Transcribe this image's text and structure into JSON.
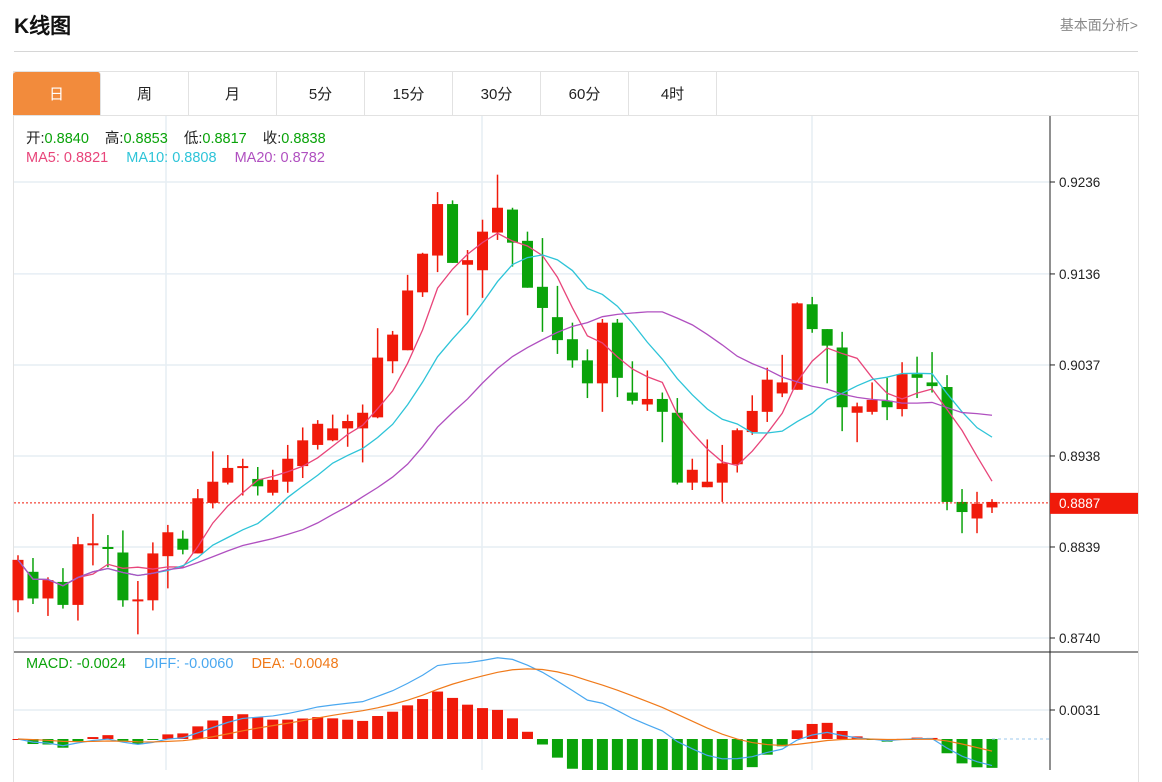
{
  "header": {
    "title": "K线图",
    "link": "基本面分析>"
  },
  "tabs": [
    {
      "label": "日",
      "active": true
    },
    {
      "label": "周"
    },
    {
      "label": "月"
    },
    {
      "label": "5分"
    },
    {
      "label": "15分"
    },
    {
      "label": "30分"
    },
    {
      "label": "60分"
    },
    {
      "label": "4时"
    }
  ],
  "ohlc_legend": {
    "open_label": "开:",
    "open": "0.8840",
    "high_label": "高:",
    "high": "0.8853",
    "low_label": "低:",
    "low": "0.8817",
    "close_label": "收:",
    "close": "0.8838"
  },
  "ma_legend": {
    "ma5": "MA5: 0.8821",
    "ma10": "MA10: 0.8808",
    "ma20": "MA20: 0.8782"
  },
  "macd_legend": {
    "macd": "MACD: -0.0024",
    "diff": "DIFF: -0.0060",
    "dea": "DEA: -0.0048"
  },
  "colors": {
    "up": "#f01a0a",
    "down": "#0aa30a",
    "ma5": "#e8457a",
    "ma10": "#2ec4d8",
    "ma20": "#b050c0",
    "diff": "#4aa8f0",
    "dea": "#f07a1a",
    "accent": "#f28b3c"
  },
  "chart_data": {
    "type": "candlestick",
    "price_ticks": [
      "0.9236",
      "0.9136",
      "0.9037",
      "0.8938",
      "0.8839",
      "0.8740"
    ],
    "price_range": [
      0.874,
      0.9236
    ],
    "current_price": "0.8887",
    "macd_ticks": [
      "0.0031"
    ],
    "ohlc": [
      [
        0.8781,
        0.883,
        0.8768,
        0.8825
      ],
      [
        0.8812,
        0.8827,
        0.8777,
        0.8783
      ],
      [
        0.8783,
        0.8806,
        0.8764,
        0.8803
      ],
      [
        0.8801,
        0.8816,
        0.8772,
        0.8776
      ],
      [
        0.8776,
        0.885,
        0.8759,
        0.8842
      ],
      [
        0.8841,
        0.8875,
        0.8819,
        0.8843
      ],
      [
        0.8839,
        0.8852,
        0.8817,
        0.8837
      ],
      [
        0.8833,
        0.8857,
        0.8774,
        0.8781
      ],
      [
        0.8781,
        0.8802,
        0.8744,
        0.8782
      ],
      [
        0.8781,
        0.8844,
        0.877,
        0.8832
      ],
      [
        0.8829,
        0.8863,
        0.8794,
        0.8855
      ],
      [
        0.8848,
        0.8857,
        0.8831,
        0.8836
      ],
      [
        0.8832,
        0.8902,
        0.8832,
        0.8892
      ],
      [
        0.8887,
        0.8943,
        0.8881,
        0.891
      ],
      [
        0.8909,
        0.8939,
        0.8907,
        0.8925
      ],
      [
        0.8925,
        0.8935,
        0.8895,
        0.8927
      ],
      [
        0.8913,
        0.8926,
        0.8895,
        0.8905
      ],
      [
        0.8898,
        0.8923,
        0.8895,
        0.8912
      ],
      [
        0.891,
        0.895,
        0.8898,
        0.8935
      ],
      [
        0.8927,
        0.8969,
        0.8914,
        0.8955
      ],
      [
        0.895,
        0.8977,
        0.8945,
        0.8973
      ],
      [
        0.8955,
        0.8983,
        0.8954,
        0.8968
      ],
      [
        0.8968,
        0.8983,
        0.8948,
        0.8976
      ],
      [
        0.8968,
        0.8994,
        0.8931,
        0.8985
      ],
      [
        0.898,
        0.9077,
        0.8979,
        0.9045
      ],
      [
        0.9041,
        0.9074,
        0.9028,
        0.907
      ],
      [
        0.9053,
        0.9135,
        0.9053,
        0.9118
      ],
      [
        0.9116,
        0.9159,
        0.9111,
        0.9158
      ],
      [
        0.9156,
        0.9225,
        0.9138,
        0.9212
      ],
      [
        0.9212,
        0.9216,
        0.9148,
        0.9148
      ],
      [
        0.9146,
        0.9162,
        0.9091,
        0.9151
      ],
      [
        0.914,
        0.9195,
        0.911,
        0.9182
      ],
      [
        0.9181,
        0.9244,
        0.9173,
        0.9208
      ],
      [
        0.9206,
        0.9208,
        0.9144,
        0.917
      ],
      [
        0.9172,
        0.9182,
        0.9121,
        0.9121
      ],
      [
        0.9122,
        0.9175,
        0.9073,
        0.9099
      ],
      [
        0.9089,
        0.9123,
        0.9049,
        0.9064
      ],
      [
        0.9065,
        0.9083,
        0.9034,
        0.9042
      ],
      [
        0.9042,
        0.9054,
        0.9001,
        0.9017
      ],
      [
        0.9017,
        0.9087,
        0.8986,
        0.9083
      ],
      [
        0.9083,
        0.9087,
        0.9002,
        0.9023
      ],
      [
        0.9007,
        0.9041,
        0.8994,
        0.8998
      ],
      [
        0.8994,
        0.9031,
        0.8987,
        0.9
      ],
      [
        0.9,
        0.9007,
        0.8953,
        0.8986
      ],
      [
        0.8985,
        0.9001,
        0.8907,
        0.8909
      ],
      [
        0.8909,
        0.8935,
        0.8901,
        0.8923
      ],
      [
        0.8904,
        0.8956,
        0.8904,
        0.891
      ],
      [
        0.8909,
        0.895,
        0.8888,
        0.893
      ],
      [
        0.8929,
        0.8968,
        0.892,
        0.8966
      ],
      [
        0.8964,
        0.9004,
        0.8961,
        0.8987
      ],
      [
        0.8986,
        0.9034,
        0.8975,
        0.9021
      ],
      [
        0.9006,
        0.9048,
        0.9002,
        0.9018
      ],
      [
        0.901,
        0.9105,
        0.901,
        0.9104
      ],
      [
        0.9103,
        0.9111,
        0.9072,
        0.9076
      ],
      [
        0.9076,
        0.9076,
        0.9017,
        0.9058
      ],
      [
        0.9056,
        0.9073,
        0.8965,
        0.8991
      ],
      [
        0.8985,
        0.8996,
        0.8953,
        0.8992
      ],
      [
        0.8986,
        0.9018,
        0.8983,
        0.8999
      ],
      [
        0.8998,
        0.9023,
        0.8977,
        0.8991
      ],
      [
        0.8989,
        0.904,
        0.8981,
        0.9027
      ],
      [
        0.9027,
        0.9046,
        0.9001,
        0.9023
      ],
      [
        0.9018,
        0.9051,
        0.9007,
        0.9014
      ],
      [
        0.9013,
        0.9026,
        0.8879,
        0.8888
      ],
      [
        0.8888,
        0.8902,
        0.8854,
        0.8877
      ],
      [
        0.887,
        0.8899,
        0.8854,
        0.8886
      ],
      [
        0.8882,
        0.8891,
        0.8876,
        0.8888
      ]
    ]
  }
}
